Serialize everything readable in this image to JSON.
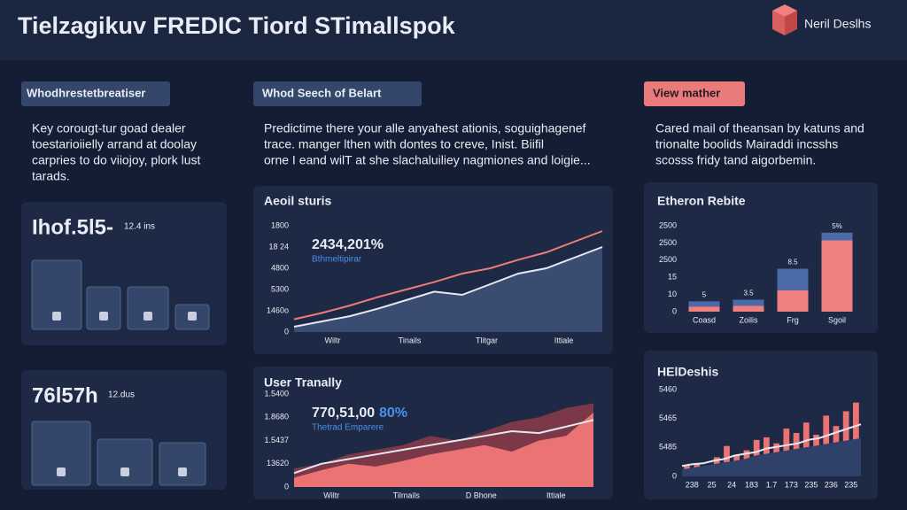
{
  "header": {
    "title": "Tielzagikuv FREDIC Tiord STimallspok",
    "brand": "Neril Deslhs"
  },
  "columns": [
    {
      "button": "Whodhrestetbreatiser",
      "text": [
        "Key corougt-tur goad dealer",
        "toestarioiielly arrand at doolay",
        "carpries to do viiojoy, plork lust",
        "tarads."
      ]
    },
    {
      "button": "Whod Seech of Belart",
      "text": [
        "Predictime there your alle anyahest ationis, soguighagenef",
        "trace. manger lthen with dontes to creve, Inist. Biifil",
        "orne I eand wilT at she slachaluiliey nagmiones and loigie..."
      ]
    },
    {
      "button": "View mather",
      "text": [
        "Cared mail of theansan by katuns and",
        "trionalte boolids  Mairaddi incsshs",
        "scosss fridy tand aigorbemin."
      ]
    }
  ],
  "cards": [
    {
      "value": "Ihof.5l5-",
      "sub": "12.4 ins"
    },
    {
      "value": "76l57h",
      "sub": "12.dus"
    }
  ],
  "charts": [
    {
      "title": "Aeoil sturis",
      "headline": "2434,201%",
      "sublabel": "Bthmeltipirar",
      "ylim": [
        0,
        100
      ],
      "ylabels": [
        "0",
        "1460o",
        "5300",
        "4800",
        "18 24",
        "1800"
      ],
      "xlabels": [
        "Wiltr",
        "Tinails",
        "Tlitgar",
        "Ittiale"
      ],
      "series": [
        {
          "style": "area",
          "color": "#3a4c72",
          "values": [
            5,
            10,
            15,
            22,
            30,
            38,
            35,
            45,
            55,
            60,
            70,
            80
          ]
        },
        {
          "style": "line",
          "color": "#e6e9f2",
          "values": [
            5,
            10,
            15,
            22,
            30,
            38,
            35,
            45,
            55,
            60,
            70,
            80
          ]
        },
        {
          "style": "line",
          "color": "#f07a78",
          "values": [
            12,
            18,
            25,
            33,
            40,
            47,
            55,
            60,
            68,
            75,
            85,
            95
          ]
        }
      ]
    },
    {
      "title": "User Tranally",
      "headline": "770,51,00",
      "headline_pct": "80%",
      "sublabel": "Thetrad Emparere",
      "ylim": [
        0,
        100
      ],
      "ylabels": [
        "0",
        "13620",
        "1.5437",
        "1.8680",
        "1.5400"
      ],
      "xlabels": [
        "Wiltr",
        "Tilmails",
        "D Bhone",
        "Ittiale"
      ],
      "series": [
        {
          "style": "area",
          "color": "#7a3848",
          "values": [
            20,
            25,
            35,
            40,
            45,
            55,
            50,
            60,
            70,
            75,
            85,
            90
          ]
        },
        {
          "style": "area",
          "color": "#ec7373",
          "values": [
            10,
            18,
            25,
            22,
            28,
            35,
            40,
            45,
            38,
            50,
            55,
            80
          ]
        },
        {
          "style": "line",
          "color": "#e6e9f2",
          "values": [
            15,
            25,
            30,
            35,
            40,
            45,
            50,
            55,
            60,
            58,
            65,
            72
          ]
        }
      ]
    },
    {
      "title": "Etheron Rebite",
      "ylim": [
        0,
        100
      ],
      "ylabels": [
        "0",
        "10",
        "15",
        "2500",
        "2500",
        "2500"
      ],
      "xlabels": [
        "Coasd",
        "Zoilis",
        "Frg",
        "Sgoil"
      ],
      "annotations": [
        "5",
        "3.5",
        "8.5",
        "5%"
      ],
      "series": [
        {
          "style": "stack",
          "color": "#f08080",
          "values": [
            6,
            7,
            25,
            83
          ]
        },
        {
          "style": "stack",
          "color": "#4a6aa8",
          "values": [
            6,
            7,
            25,
            9
          ]
        }
      ]
    },
    {
      "title": "HElDeshis",
      "ylim": [
        0,
        100
      ],
      "ylabels": [
        "0",
        "5485",
        "5465",
        "5460"
      ],
      "xlabels": [
        "238",
        "25",
        "24",
        "183",
        "1.7",
        "173",
        "235",
        "236",
        "235"
      ],
      "series": [
        {
          "style": "bar",
          "color": "#ec7373",
          "values": [
            12,
            15,
            10,
            22,
            35,
            25,
            30,
            42,
            45,
            38,
            55,
            50,
            62,
            48,
            70,
            58,
            75,
            85
          ]
        },
        {
          "style": "area",
          "color": "#2f4168",
          "values": [
            8,
            10,
            12,
            14,
            16,
            18,
            20,
            24,
            26,
            28,
            30,
            32,
            34,
            36,
            38,
            40,
            42,
            44
          ]
        },
        {
          "style": "line",
          "color": "#e6e9f2",
          "values": [
            12,
            14,
            15,
            18,
            20,
            24,
            26,
            28,
            32,
            34,
            36,
            38,
            42,
            44,
            48,
            52,
            56,
            60
          ]
        }
      ]
    }
  ]
}
